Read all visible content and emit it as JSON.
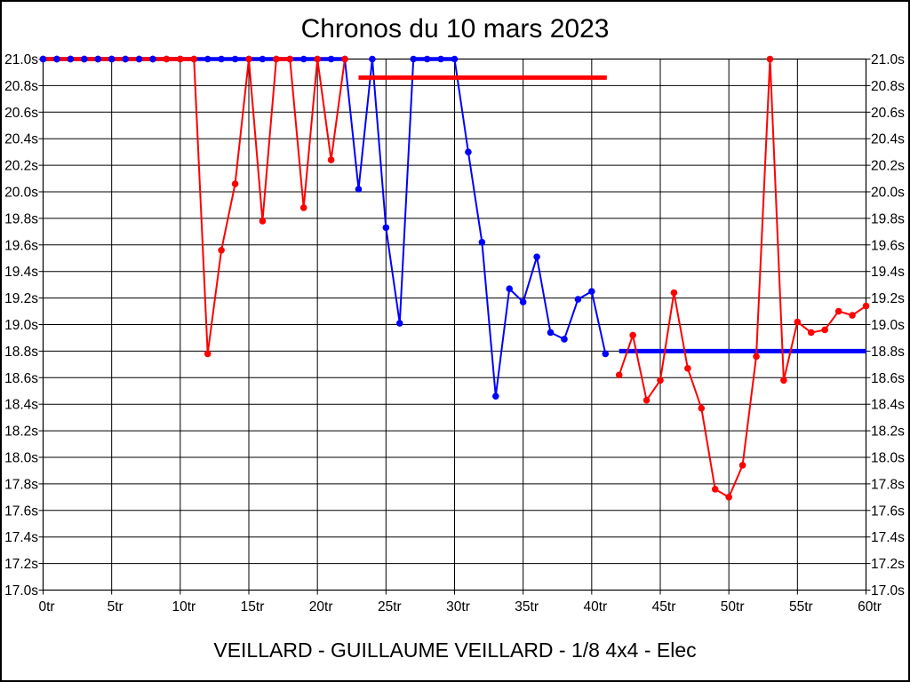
{
  "title": "Chronos du 10 mars 2023",
  "footer": "VEILLARD - GUILLAUME VEILLARD - 1/8 4x4 - Elec",
  "colors": {
    "red": "#ff0000",
    "blue": "#0000ff",
    "grid": "#000000",
    "background": "#ffffff"
  },
  "chart_data": {
    "type": "line",
    "title": "Chronos du 10 mars 2023",
    "subtitle": "VEILLARD - GUILLAUME VEILLARD - 1/8 4x4 - Elec",
    "grid": true,
    "legend": "none",
    "x_axis": {
      "min": 0,
      "max": 60,
      "tick_step": 5,
      "unit": "tr",
      "tick_labels": [
        "0tr",
        "5tr",
        "10tr",
        "15tr",
        "20tr",
        "25tr",
        "30tr",
        "35tr",
        "40tr",
        "45tr",
        "50tr",
        "55tr",
        "60tr"
      ]
    },
    "y_axis": {
      "min": 17.0,
      "max": 21.0,
      "tick_step": 0.2,
      "unit": "s",
      "labels_on_both_sides": true,
      "tick_labels": [
        "21.0s",
        "20.8s",
        "20.6s",
        "20.4s",
        "20.2s",
        "20.0s",
        "19.8s",
        "19.6s",
        "19.4s",
        "19.2s",
        "19.0s",
        "18.8s",
        "18.6s",
        "18.4s",
        "18.2s",
        "18.0s",
        "17.8s",
        "17.6s",
        "17.4s",
        "17.2s",
        "17.0s"
      ]
    },
    "x_is_lap_index_0_to_60": true,
    "series": [
      {
        "name": "blue-run",
        "color": "#0000ff",
        "values": [
          21.0,
          21.0,
          21.0,
          21.0,
          21.0,
          21.0,
          21.0,
          21.0,
          21.0,
          21.0,
          21.0,
          21.0,
          21.0,
          21.0,
          21.0,
          21.0,
          21.0,
          21.0,
          21.0,
          21.0,
          21.0,
          21.0,
          21.0,
          20.02,
          21.0,
          19.73,
          19.01,
          21.0,
          21.0,
          21.0,
          21.0,
          20.3,
          19.62,
          18.46,
          19.27,
          19.17,
          19.51,
          18.94,
          18.89,
          19.19,
          19.25,
          18.78,
          null,
          null,
          null,
          null,
          null,
          null,
          null,
          null,
          null,
          null,
          null,
          null,
          null,
          null,
          null,
          null,
          null,
          null,
          null
        ]
      },
      {
        "name": "red-run",
        "color": "#ff0000",
        "values": [
          21.0,
          21.0,
          21.0,
          21.0,
          21.0,
          21.0,
          21.0,
          21.0,
          21.0,
          21.0,
          21.0,
          21.0,
          18.78,
          19.56,
          20.06,
          21.0,
          19.78,
          21.0,
          21.0,
          19.88,
          21.0,
          20.24,
          21.0,
          null,
          null,
          null,
          null,
          null,
          null,
          null,
          null,
          null,
          null,
          null,
          null,
          null,
          null,
          null,
          null,
          null,
          null,
          null,
          18.62,
          18.92,
          18.43,
          18.58,
          19.24,
          18.67,
          18.37,
          17.76,
          17.7,
          17.94,
          18.76,
          21.0,
          18.58,
          19.02,
          18.94,
          18.96,
          19.1,
          19.07,
          19.14
        ]
      }
    ],
    "reference_lines": [
      {
        "name": "red-average-line",
        "color": "#ff0000",
        "y": 20.86,
        "x_start": 23,
        "x_end": 41.1
      },
      {
        "name": "blue-average-line",
        "color": "#0000ff",
        "y": 18.8,
        "x_start": 42,
        "x_end": 60
      }
    ],
    "overlay_markers": {
      "series": "blue-run",
      "lap_from": 0,
      "lap_to": 8
    },
    "clipped_at_top_note": "flat runs at 21.0s are drawn as thick clipped segments"
  }
}
